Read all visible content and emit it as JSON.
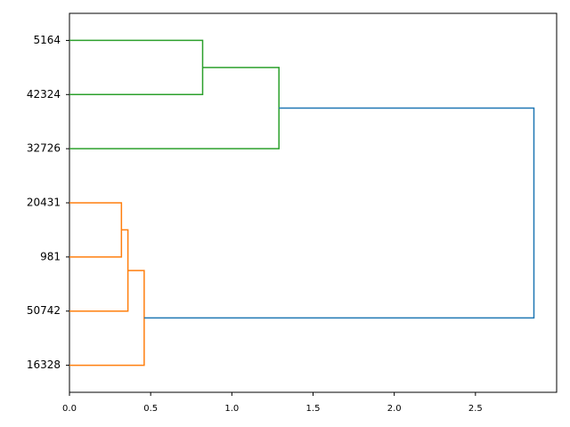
{
  "chart_data": {
    "type": "dendrogram",
    "orientation": "left",
    "xlim": [
      0,
      3.0
    ],
    "xticks": [
      {
        "value": 0,
        "label": "0.0"
      },
      0.5,
      {
        "value": 1,
        "label": "1.0"
      },
      1.5,
      {
        "value": 2,
        "label": "2.0"
      },
      2.5
    ],
    "tree": {
      "height": 2.86,
      "color": "#1f77b4",
      "children": [
        {
          "height": 1.29,
          "color": "#2ca02c",
          "children": [
            {
              "height": 0.82,
              "color": "#2ca02c",
              "children": [
                {
                  "label": "5164"
                },
                {
                  "label": "42324"
                }
              ]
            },
            {
              "label": "32726"
            }
          ]
        },
        {
          "height": 0.46,
          "color": "#ff7f0e",
          "children": [
            {
              "height": 0.36,
              "color": "#ff7f0e",
              "children": [
                {
                  "height": 0.32,
                  "color": "#ff7f0e",
                  "children": [
                    {
                      "label": "20431"
                    },
                    {
                      "label": "981"
                    }
                  ]
                },
                {
                  "label": "50742"
                }
              ]
            },
            {
              "label": "16328"
            }
          ]
        }
      ]
    }
  }
}
